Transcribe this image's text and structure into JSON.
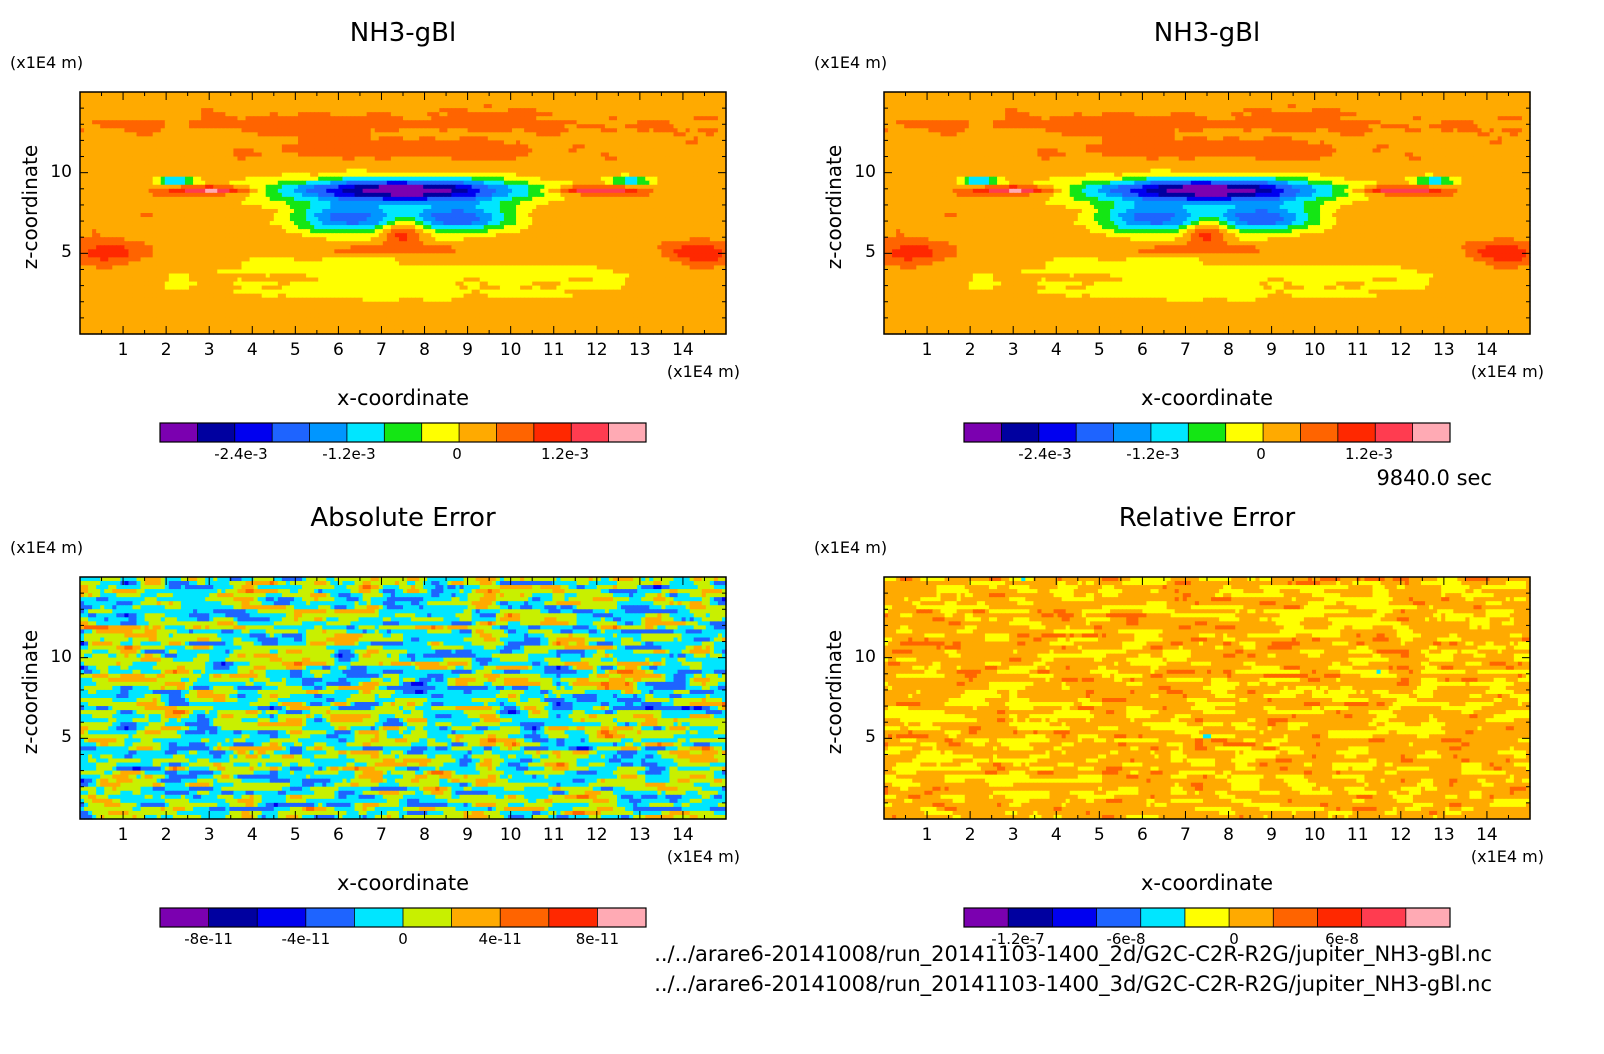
{
  "time_label": "9840.0 sec",
  "files": [
    "../../arare6-20141008/run_20141103-1400_2d/G2C-C2R-R2G/jupiter_NH3-gBl.nc",
    "../../arare6-20141008/run_20141103-1400_3d/G2C-C2R-R2G/jupiter_NH3-gBl.nc"
  ],
  "chart_data": [
    {
      "type": "heatmap",
      "title": "NH3-gBl",
      "xlabel": "x-coordinate",
      "ylabel": "z-coordinate",
      "x_unit": "(x1E4 m)",
      "y_unit": "(x1E4 m)",
      "xlim": [
        0,
        15
      ],
      "ylim": [
        0,
        15
      ],
      "x_ticks": [
        "1",
        "2",
        "3",
        "4",
        "5",
        "6",
        "7",
        "8",
        "9",
        "10",
        "11",
        "12",
        "13",
        "14"
      ],
      "y_ticks": [
        "5",
        "10"
      ],
      "colorbar": {
        "colors": [
          "#7b00b0",
          "#0000a0",
          "#0000f0",
          "#1e64ff",
          "#0096ff",
          "#00e6ff",
          "#14e614",
          "#ffff00",
          "#ffaa00",
          "#ff6400",
          "#ff2800",
          "#ff3c50",
          "#ffaab4"
        ],
        "tick_labels": [
          "-2.4e-3",
          "-1.2e-3",
          "0",
          "1.2e-3"
        ],
        "tick_values": [
          -0.0024,
          -0.0012,
          0,
          0.0012
        ],
        "range": [
          -0.0033,
          0.0021
        ]
      },
      "field": "nh3"
    },
    {
      "type": "heatmap",
      "title": "NH3-gBl",
      "xlabel": "x-coordinate",
      "ylabel": "z-coordinate",
      "x_unit": "(x1E4 m)",
      "y_unit": "(x1E4 m)",
      "xlim": [
        0,
        15
      ],
      "ylim": [
        0,
        15
      ],
      "x_ticks": [
        "1",
        "2",
        "3",
        "4",
        "5",
        "6",
        "7",
        "8",
        "9",
        "10",
        "11",
        "12",
        "13",
        "14"
      ],
      "y_ticks": [
        "5",
        "10"
      ],
      "colorbar": {
        "colors": [
          "#7b00b0",
          "#0000a0",
          "#0000f0",
          "#1e64ff",
          "#0096ff",
          "#00e6ff",
          "#14e614",
          "#ffff00",
          "#ffaa00",
          "#ff6400",
          "#ff2800",
          "#ff3c50",
          "#ffaab4"
        ],
        "tick_labels": [
          "-2.4e-3",
          "-1.2e-3",
          "0",
          "1.2e-3"
        ],
        "tick_values": [
          -0.0024,
          -0.0012,
          0,
          0.0012
        ],
        "range": [
          -0.0033,
          0.0021
        ]
      },
      "field": "nh3"
    },
    {
      "type": "heatmap",
      "title": "Absolute Error",
      "xlabel": "x-coordinate",
      "ylabel": "z-coordinate",
      "x_unit": "(x1E4 m)",
      "y_unit": "(x1E4 m)",
      "xlim": [
        0,
        15
      ],
      "ylim": [
        0,
        15
      ],
      "x_ticks": [
        "1",
        "2",
        "3",
        "4",
        "5",
        "6",
        "7",
        "8",
        "9",
        "10",
        "11",
        "12",
        "13",
        "14"
      ],
      "y_ticks": [
        "5",
        "10"
      ],
      "colorbar": {
        "colors": [
          "#7b00b0",
          "#0000a0",
          "#0000f0",
          "#1e64ff",
          "#00e6ff",
          "#c8f000",
          "#ffaa00",
          "#ff6400",
          "#ff2800",
          "#ffaab4"
        ],
        "tick_labels": [
          "-8e-11",
          "-4e-11",
          "0",
          "4e-11",
          "8e-11"
        ],
        "tick_values": [
          -8e-11,
          -4e-11,
          0,
          4e-11,
          8e-11
        ],
        "range": [
          -1e-10,
          1e-10
        ]
      },
      "field": "abs"
    },
    {
      "type": "heatmap",
      "title": "Relative Error",
      "xlabel": "x-coordinate",
      "ylabel": "z-coordinate",
      "x_unit": "(x1E4 m)",
      "y_unit": "(x1E4 m)",
      "xlim": [
        0,
        15
      ],
      "ylim": [
        0,
        15
      ],
      "x_ticks": [
        "1",
        "2",
        "3",
        "4",
        "5",
        "6",
        "7",
        "8",
        "9",
        "10",
        "11",
        "12",
        "13",
        "14"
      ],
      "y_ticks": [
        "5",
        "10"
      ],
      "colorbar": {
        "colors": [
          "#7b00b0",
          "#0000a0",
          "#0000f0",
          "#1e64ff",
          "#00e6ff",
          "#ffff00",
          "#ffaa00",
          "#ff6400",
          "#ff2800",
          "#ff3c50",
          "#ffaab4"
        ],
        "tick_labels": [
          "-1.2e-7",
          "-6e-8",
          "0",
          "6e-8"
        ],
        "tick_values": [
          -1.2e-07,
          -6e-08,
          0,
          6e-08
        ],
        "range": [
          -1.5e-07,
          1.2e-07
        ]
      },
      "field": "rel"
    }
  ]
}
